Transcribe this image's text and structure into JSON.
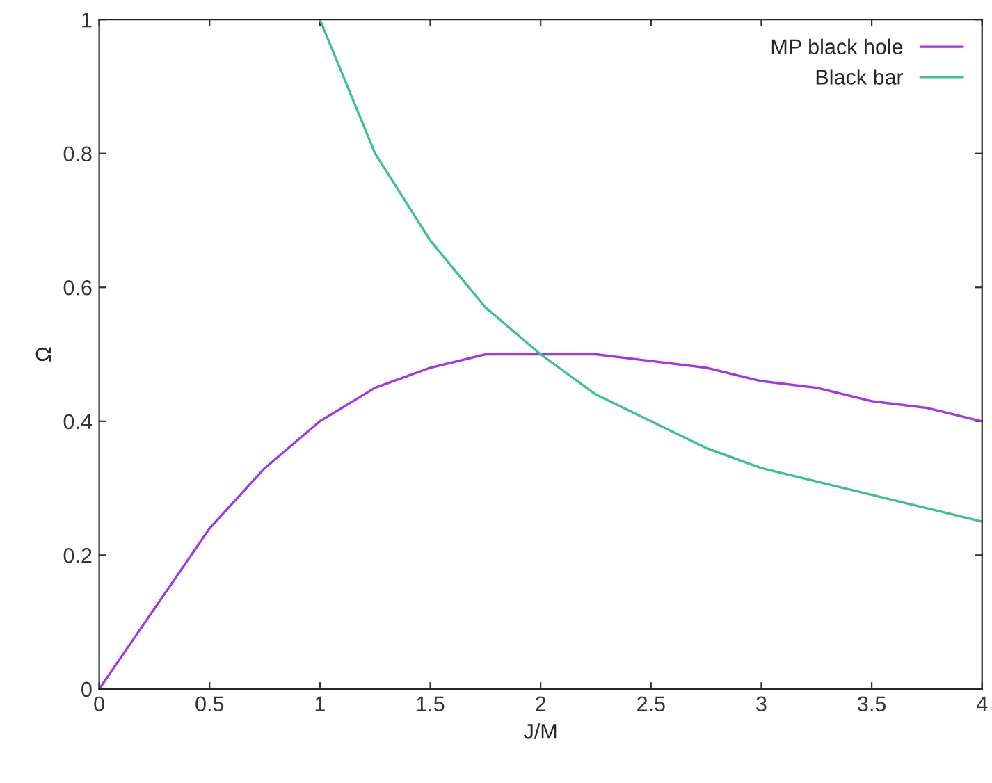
{
  "chart_data": {
    "type": "line",
    "xlabel": "J/M",
    "ylabel": "Ω",
    "xlim": [
      0,
      4
    ],
    "ylim": [
      0,
      1
    ],
    "xticks": [
      0,
      0.5,
      1,
      1.5,
      2,
      2.5,
      3,
      3.5,
      4
    ],
    "yticks": [
      0,
      0.2,
      0.4,
      0.6,
      0.8,
      1
    ],
    "grid": false,
    "legend": "top right",
    "series": [
      {
        "name": "MP black hole",
        "color": "#a335e8",
        "x": [
          0,
          0.25,
          0.5,
          0.75,
          1,
          1.25,
          1.5,
          1.75,
          2,
          2.25,
          2.5,
          2.75,
          3,
          3.25,
          3.5,
          3.75,
          4
        ],
        "values": [
          0,
          0.12,
          0.24,
          0.33,
          0.4,
          0.45,
          0.48,
          0.5,
          0.5,
          0.5,
          0.49,
          0.48,
          0.46,
          0.45,
          0.43,
          0.42,
          0.4
        ]
      },
      {
        "name": "Black bar",
        "color": "#3cbf9a",
        "x": [
          1,
          1.25,
          1.5,
          1.75,
          2,
          2.25,
          2.5,
          2.75,
          3,
          3.25,
          3.5,
          3.75,
          4
        ],
        "values": [
          1,
          0.8,
          0.67,
          0.57,
          0.5,
          0.44,
          0.4,
          0.36,
          0.33,
          0.31,
          0.29,
          0.27,
          0.25
        ]
      }
    ]
  }
}
